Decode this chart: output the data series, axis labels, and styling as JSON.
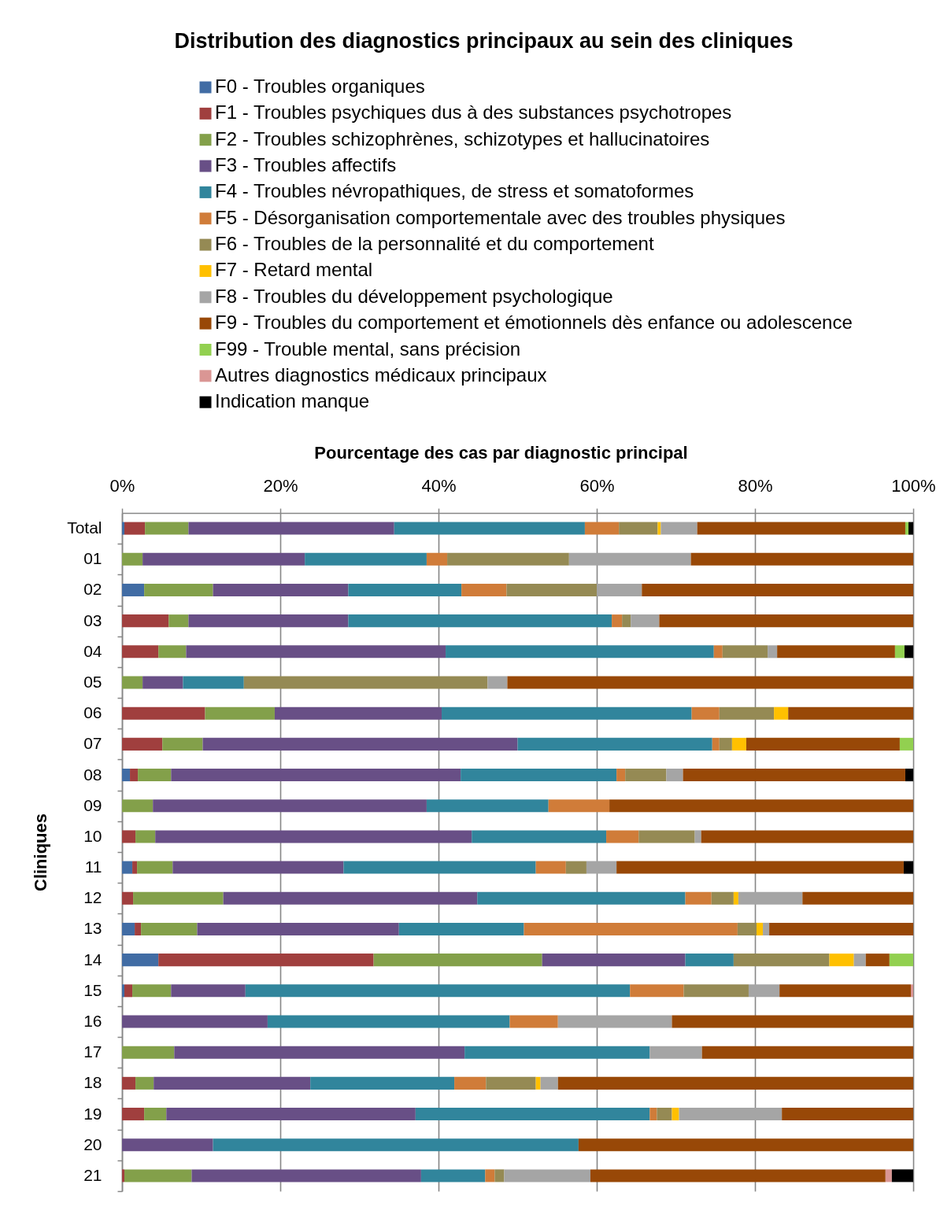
{
  "chart_data": {
    "type": "bar",
    "orientation": "horizontal",
    "stacked": true,
    "title": "Distribution des diagnostics principaux au sein des cliniques",
    "xlabel": "Pourcentage des cas par diagnostic principal",
    "ylabel": "Cliniques",
    "categories": [
      "Total",
      "01",
      "02",
      "03",
      "04",
      "05",
      "06",
      "07",
      "08",
      "09",
      "10",
      "11",
      "12",
      "13",
      "14",
      "15",
      "16",
      "17",
      "18",
      "19",
      "20",
      "21"
    ],
    "series": [
      {
        "name": "F0 - Troubles organiques",
        "color": "#416ca4",
        "values": [
          0.3,
          null,
          2.8,
          null,
          null,
          null,
          null,
          null,
          1.0,
          null,
          null,
          1.3,
          null,
          1.6,
          4.6,
          0.3,
          null,
          null,
          null,
          null,
          null,
          null
        ]
      },
      {
        "name": "F1 - Troubles psychiques dus à des substances psychotropes",
        "color": "#a03f3e",
        "values": [
          2.6,
          null,
          null,
          5.9,
          4.6,
          null,
          10.5,
          5.1,
          1.0,
          null,
          1.7,
          0.6,
          1.4,
          0.8,
          27.2,
          1.0,
          null,
          null,
          1.7,
          2.8,
          null,
          0.3
        ]
      },
      {
        "name": "F2 - Troubles schizophrènes, schizotypes et hallucinatoires",
        "color": "#83a04a",
        "values": [
          5.5,
          2.6,
          8.7,
          2.5,
          3.5,
          2.6,
          8.8,
          5.1,
          4.2,
          3.9,
          2.5,
          4.5,
          11.4,
          7.1,
          21.3,
          4.9,
          null,
          6.6,
          2.3,
          2.8,
          null,
          8.5
        ]
      },
      {
        "name": "F3 - Troubles affectifs",
        "color": "#684f86",
        "values": [
          26.0,
          20.5,
          17.1,
          20.2,
          32.8,
          5.1,
          21.1,
          39.8,
          36.6,
          34.6,
          40.0,
          21.6,
          32.1,
          25.5,
          18.1,
          9.4,
          18.4,
          36.7,
          19.8,
          31.5,
          11.5,
          29.0
        ]
      },
      {
        "name": "F4 - Troubles névropathiques, de stress et somatoformes",
        "color": "#31859c",
        "values": [
          24.1,
          15.4,
          14.3,
          33.3,
          33.9,
          7.7,
          31.6,
          24.6,
          19.7,
          15.4,
          17.0,
          24.3,
          26.3,
          15.8,
          6.1,
          48.6,
          30.6,
          23.4,
          18.2,
          29.6,
          46.2,
          8.1
        ]
      },
      {
        "name": "F5 - Désorganisation comportementale avec des troubles physiques",
        "color": "#d07c39",
        "values": [
          4.3,
          2.6,
          5.7,
          1.3,
          1.1,
          null,
          3.5,
          0.9,
          1.1,
          7.7,
          4.1,
          3.8,
          3.3,
          27.0,
          null,
          6.8,
          6.1,
          null,
          4.0,
          0.9,
          null,
          1.2
        ]
      },
      {
        "name": "F6 - Troubles de la personnalité et du comportement",
        "color": "#958a54",
        "values": [
          4.9,
          15.4,
          11.4,
          1.1,
          5.7,
          30.8,
          6.9,
          1.6,
          5.2,
          null,
          7.1,
          2.6,
          2.8,
          2.4,
          12.1,
          8.2,
          null,
          null,
          6.3,
          1.9,
          null,
          1.2
        ]
      },
      {
        "name": "F7 - Retard mental",
        "color": "#ffc000",
        "values": [
          0.4,
          null,
          null,
          null,
          null,
          null,
          1.8,
          1.8,
          null,
          null,
          null,
          null,
          0.6,
          0.8,
          3.1,
          null,
          null,
          null,
          0.6,
          0.9,
          null,
          null
        ]
      },
      {
        "name": "F8 - Troubles du développement psychologique",
        "color": "#a5a5a5",
        "values": [
          4.6,
          15.4,
          5.7,
          3.6,
          1.2,
          2.5,
          null,
          null,
          2.1,
          null,
          0.8,
          3.8,
          8.1,
          0.8,
          1.5,
          3.9,
          14.4,
          6.6,
          2.2,
          13.0,
          null,
          10.9
        ]
      },
      {
        "name": "F9 - Troubles du comportement et émotionnels dès enfance ou adolescence",
        "color": "#984807",
        "values": [
          26.3,
          28.1,
          34.3,
          32.1,
          14.9,
          51.3,
          15.8,
          19.4,
          28.1,
          38.4,
          26.8,
          36.3,
          14.0,
          18.2,
          3.0,
          16.6,
          30.5,
          26.7,
          44.9,
          16.6,
          42.3,
          37.3
        ]
      },
      {
        "name": "F99 - Trouble mental, sans précision",
        "color": "#92d050",
        "values": [
          0.4,
          null,
          null,
          null,
          1.2,
          null,
          null,
          1.7,
          null,
          null,
          null,
          null,
          null,
          null,
          3.0,
          null,
          null,
          null,
          null,
          null,
          null,
          null
        ]
      },
      {
        "name": "Autres diagnostics médicaux principaux",
        "color": "#da9694",
        "values": [
          null,
          null,
          null,
          null,
          null,
          null,
          null,
          null,
          null,
          null,
          null,
          null,
          null,
          null,
          null,
          0.3,
          null,
          null,
          null,
          null,
          null,
          0.8
        ]
      },
      {
        "name": "Indication manque",
        "color": "#000000",
        "values": [
          0.6,
          null,
          null,
          null,
          1.1,
          null,
          null,
          null,
          1.0,
          null,
          null,
          1.2,
          null,
          null,
          null,
          null,
          null,
          null,
          null,
          null,
          null,
          2.7
        ]
      }
    ],
    "xlim": [
      0,
      100
    ],
    "xticks": [
      {
        "value": 0,
        "label": "0%"
      },
      {
        "value": 20,
        "label": "20%"
      },
      {
        "value": 40,
        "label": "40%"
      },
      {
        "value": 60,
        "label": "60%"
      },
      {
        "value": 80,
        "label": "80%"
      },
      {
        "value": 100,
        "label": "100%"
      }
    ],
    "grid": "x",
    "legend": "top"
  }
}
